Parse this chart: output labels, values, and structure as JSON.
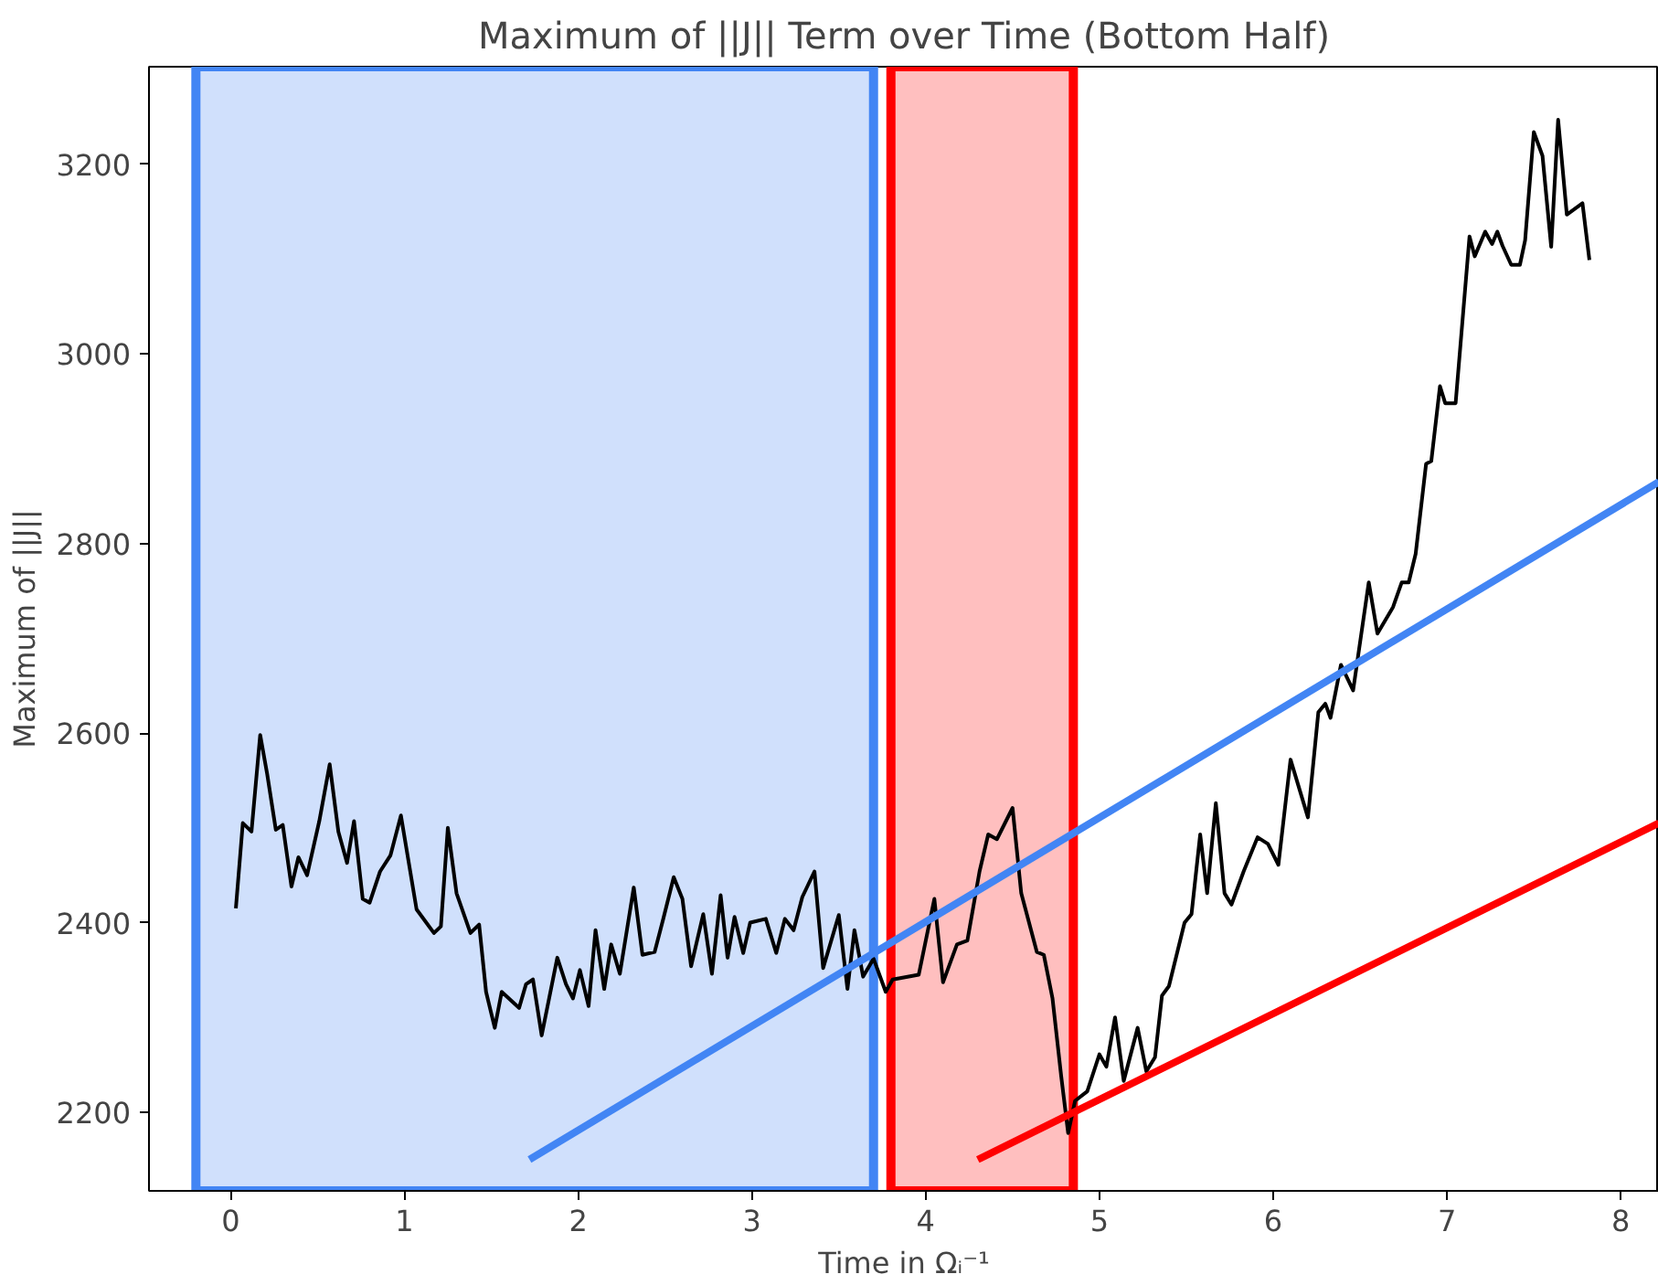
{
  "chart_data": {
    "type": "line",
    "title": "Maximum of ||J|| Term over Time (Bottom Half)",
    "xlabel": "Time in Ωᵢ⁻¹",
    "ylabel": "Maximum of ||J||",
    "xlim": [
      -0.47,
      8.22
    ],
    "ylim": [
      2117,
      3303
    ],
    "xticks": [
      0,
      1,
      2,
      3,
      4,
      5,
      6,
      7,
      8
    ],
    "yticks": [
      2200,
      2400,
      2600,
      2800,
      3000,
      3200
    ],
    "grid": false,
    "series": [
      {
        "color": "#000000",
        "x": [
          0.03,
          0.07,
          0.12,
          0.17,
          0.21,
          0.26,
          0.3,
          0.35,
          0.39,
          0.44,
          0.51,
          0.57,
          0.62,
          0.67,
          0.71,
          0.76,
          0.8,
          0.86,
          0.92,
          0.98,
          1.07,
          1.17,
          1.21,
          1.25,
          1.3,
          1.38,
          1.43,
          1.47,
          1.52,
          1.56,
          1.66,
          1.7,
          1.74,
          1.79,
          1.88,
          1.93,
          1.97,
          2.01,
          2.06,
          2.1,
          2.15,
          2.19,
          2.24,
          2.32,
          2.37,
          2.44,
          2.49,
          2.55,
          2.6,
          2.65,
          2.72,
          2.77,
          2.82,
          2.86,
          2.9,
          2.95,
          2.99,
          3.08,
          3.14,
          3.19,
          3.24,
          3.29,
          3.36,
          3.41,
          3.5,
          3.55,
          3.59,
          3.64,
          3.7,
          3.77,
          3.81,
          3.96,
          4.05,
          4.1,
          4.18,
          4.24,
          4.31,
          4.36,
          4.41,
          4.5,
          4.55,
          4.64,
          4.68,
          4.73,
          4.78,
          4.82,
          4.86,
          4.93,
          5.0,
          5.04,
          5.09,
          5.14,
          5.22,
          5.27,
          5.32,
          5.36,
          5.4,
          5.49,
          5.53,
          5.58,
          5.62,
          5.67,
          5.72,
          5.76,
          5.83,
          5.91,
          5.97,
          6.03,
          6.1,
          6.2,
          6.26,
          6.3,
          6.33,
          6.39,
          6.46,
          6.55,
          6.6,
          6.69,
          6.74,
          6.78,
          6.82,
          6.88,
          6.91,
          6.96,
          6.99,
          7.05,
          7.13,
          7.16,
          7.22,
          7.26,
          7.29,
          7.32,
          7.37,
          7.42,
          7.45,
          7.5,
          7.55,
          7.6,
          7.64,
          7.69,
          7.78,
          7.82
        ],
        "values": [
          2415,
          2505,
          2496,
          2598,
          2557,
          2498,
          2503,
          2438,
          2469,
          2450,
          2507,
          2567,
          2496,
          2463,
          2507,
          2425,
          2421,
          2454,
          2471,
          2513,
          2414,
          2389,
          2396,
          2500,
          2431,
          2389,
          2398,
          2327,
          2289,
          2327,
          2310,
          2335,
          2340,
          2281,
          2363,
          2335,
          2320,
          2350,
          2312,
          2392,
          2330,
          2377,
          2346,
          2437,
          2366,
          2369,
          2404,
          2448,
          2425,
          2354,
          2409,
          2346,
          2429,
          2363,
          2406,
          2368,
          2400,
          2404,
          2368,
          2404,
          2392,
          2427,
          2454,
          2352,
          2408,
          2330,
          2392,
          2343,
          2362,
          2327,
          2340,
          2345,
          2425,
          2337,
          2377,
          2381,
          2454,
          2493,
          2488,
          2521,
          2431,
          2369,
          2366,
          2320,
          2238,
          2178,
          2212,
          2222,
          2261,
          2248,
          2300,
          2233,
          2289,
          2243,
          2258,
          2323,
          2333,
          2400,
          2409,
          2493,
          2431,
          2526,
          2431,
          2419,
          2454,
          2490,
          2483,
          2461,
          2572,
          2511,
          2622,
          2631,
          2616,
          2672,
          2645,
          2759,
          2705,
          2733,
          2759,
          2759,
          2789,
          2884,
          2887,
          2966,
          2948,
          2948,
          3124,
          3103,
          3129,
          3116,
          3129,
          3114,
          3094,
          3094,
          3120,
          3234,
          3209,
          3113,
          3247,
          3147,
          3159,
          3099
        ]
      },
      {
        "color": "#4285f4",
        "x": [
          1.72,
          8.22
        ],
        "values": [
          2150,
          2865
        ]
      },
      {
        "color": "#ff0000",
        "x": [
          4.3,
          8.22
        ],
        "values": [
          2150,
          2505
        ]
      }
    ],
    "bands": [
      {
        "axis": "x",
        "from": -0.2,
        "to": 3.7,
        "color": "#4285f4"
      },
      {
        "axis": "x",
        "from": 3.8,
        "to": 4.85,
        "color": "#ff0000"
      }
    ]
  }
}
